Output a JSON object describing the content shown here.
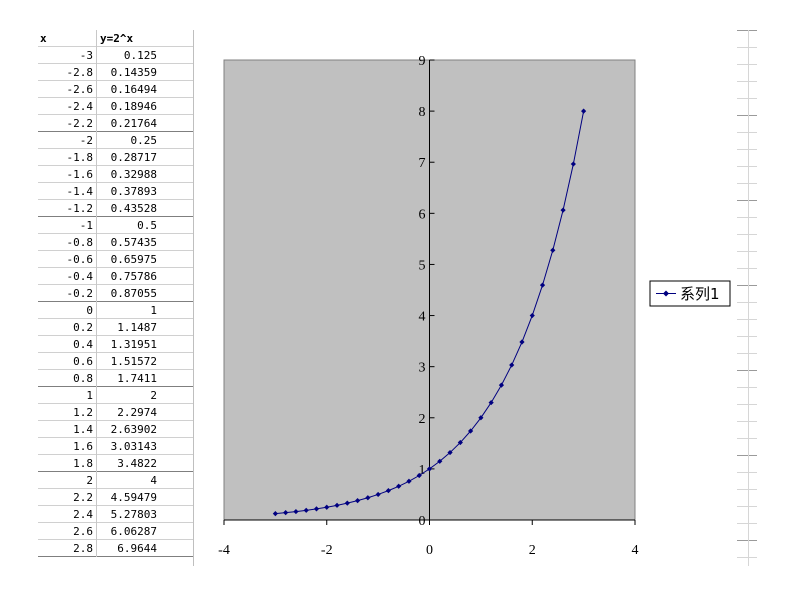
{
  "sheet": {
    "headers": {
      "x": "x",
      "y": "y=2^x"
    },
    "rows": [
      {
        "x": "-3",
        "y": "0.125"
      },
      {
        "x": "-2.8",
        "y": "0.14359"
      },
      {
        "x": "-2.6",
        "y": "0.16494"
      },
      {
        "x": "-2.4",
        "y": "0.18946"
      },
      {
        "x": "-2.2",
        "y": "0.21764"
      },
      {
        "x": "-2",
        "y": "0.25"
      },
      {
        "x": "-1.8",
        "y": "0.28717"
      },
      {
        "x": "-1.6",
        "y": "0.32988"
      },
      {
        "x": "-1.4",
        "y": "0.37893"
      },
      {
        "x": "-1.2",
        "y": "0.43528"
      },
      {
        "x": "-1",
        "y": "0.5"
      },
      {
        "x": "-0.8",
        "y": "0.57435"
      },
      {
        "x": "-0.6",
        "y": "0.65975"
      },
      {
        "x": "-0.4",
        "y": "0.75786"
      },
      {
        "x": "-0.2",
        "y": "0.87055"
      },
      {
        "x": "0",
        "y": "1"
      },
      {
        "x": "0.2",
        "y": "1.1487"
      },
      {
        "x": "0.4",
        "y": "1.31951"
      },
      {
        "x": "0.6",
        "y": "1.51572"
      },
      {
        "x": "0.8",
        "y": "1.7411"
      },
      {
        "x": "1",
        "y": "2"
      },
      {
        "x": "1.2",
        "y": "2.2974"
      },
      {
        "x": "1.4",
        "y": "2.63902"
      },
      {
        "x": "1.6",
        "y": "3.03143"
      },
      {
        "x": "1.8",
        "y": "3.4822"
      },
      {
        "x": "2",
        "y": "4"
      },
      {
        "x": "2.2",
        "y": "4.59479"
      },
      {
        "x": "2.4",
        "y": "5.27803"
      },
      {
        "x": "2.6",
        "y": "6.06287"
      },
      {
        "x": "2.8",
        "y": "6.9644"
      }
    ]
  },
  "chart_data": {
    "type": "scatter",
    "title": "",
    "xlabel": "",
    "ylabel": "",
    "xlim": [
      -4,
      4
    ],
    "ylim": [
      0,
      9
    ],
    "x_ticks": [
      -4,
      -2,
      0,
      2,
      4
    ],
    "y_ticks": [
      0,
      1,
      2,
      3,
      4,
      5,
      6,
      7,
      8,
      9
    ],
    "x_tick_labels": [
      "-4",
      "-2",
      "0",
      "2",
      "4"
    ],
    "y_tick_labels": [
      "0",
      "1",
      "2",
      "3",
      "4",
      "5",
      "6",
      "7",
      "8",
      "9"
    ],
    "grid": false,
    "legend_position": "right",
    "plot_background": "#c0c0c0",
    "series": [
      {
        "name": "系列1",
        "color": "#000080",
        "marker": "diamond",
        "line": "smooth",
        "x": [
          -3,
          -2.8,
          -2.6,
          -2.4,
          -2.2,
          -2,
          -1.8,
          -1.6,
          -1.4,
          -1.2,
          -1,
          -0.8,
          -0.6,
          -0.4,
          -0.2,
          0,
          0.2,
          0.4,
          0.6,
          0.8,
          1,
          1.2,
          1.4,
          1.6,
          1.8,
          2,
          2.2,
          2.4,
          2.6,
          2.8,
          3
        ],
        "y": [
          0.125,
          0.14359,
          0.16494,
          0.18946,
          0.21764,
          0.25,
          0.28717,
          0.32988,
          0.37893,
          0.43528,
          0.5,
          0.57435,
          0.65975,
          0.75786,
          0.87055,
          1,
          1.1487,
          1.31951,
          1.51572,
          1.7411,
          2,
          2.2974,
          2.63902,
          3.03143,
          3.4822,
          4,
          4.59479,
          5.27803,
          6.06287,
          6.9644,
          8
        ]
      }
    ]
  }
}
